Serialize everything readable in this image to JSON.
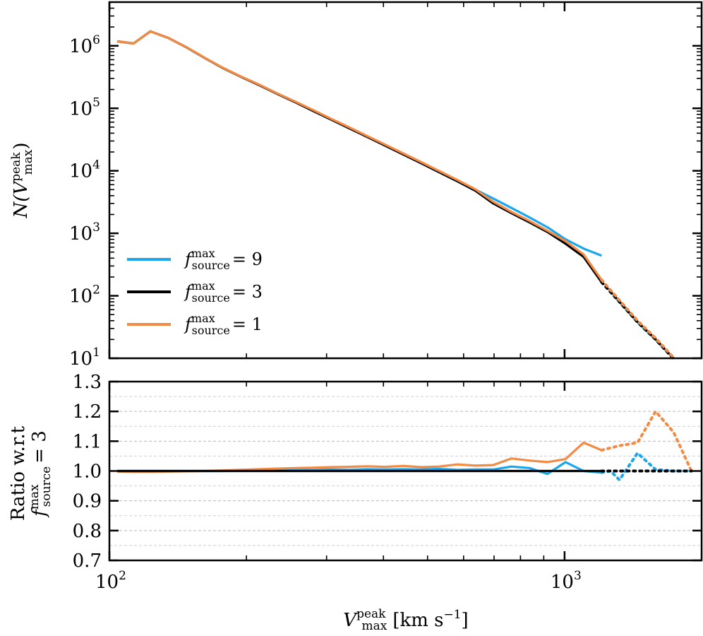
{
  "chart_data": [
    {
      "type": "line",
      "panel": "top",
      "xscale": "log",
      "yscale": "log",
      "xlim": [
        100,
        2000
      ],
      "ylim": [
        10,
        5000000
      ],
      "ylabel": {
        "base": "N(V",
        "sup": "peak",
        "sub": "max",
        "tail": ")"
      },
      "yticks": [
        {
          "value": 10,
          "base": "10",
          "exp": "1"
        },
        {
          "value": 100,
          "base": "10",
          "exp": "2"
        },
        {
          "value": 1000,
          "base": "10",
          "exp": "3"
        },
        {
          "value": 10000,
          "base": "10",
          "exp": "4"
        },
        {
          "value": 100000,
          "base": "10",
          "exp": "5"
        },
        {
          "value": 1000000,
          "base": "10",
          "exp": "6"
        }
      ],
      "legend_position": "lower-left",
      "series": [
        {
          "name": "f_source^max = 9",
          "legend": {
            "f": "f",
            "sup": "max",
            "sub": "source",
            "eq": "= 9"
          },
          "color": "#1aa7ec",
          "x": [
            104,
            113,
            123,
            135,
            148,
            162,
            177,
            194,
            213,
            233,
            256,
            280,
            307,
            336,
            368,
            403,
            442,
            484,
            530,
            581,
            637,
            697,
            764,
            837,
            917,
            1005,
            1101,
            1206
          ],
          "y": [
            1180000,
            1090000,
            1700000,
            1330000,
            940000,
            640000,
            450000,
            326000,
            240000,
            175000,
            128000,
            93000,
            67500,
            49000,
            35700,
            26000,
            18800,
            13600,
            9800,
            7050,
            5000,
            3600,
            2550,
            1800,
            1250,
            800,
            570,
            440
          ],
          "dotted": {
            "x": [
              1206,
              1320,
              1446,
              1585,
              1736
            ],
            "y": [
              180,
              80,
              38,
              20,
              10
            ]
          }
        },
        {
          "name": "f_source^max = 3",
          "legend": {
            "f": "f",
            "sup": "max",
            "sub": "source",
            "eq": "= 3"
          },
          "color": "#000000",
          "x": [
            104,
            113,
            123,
            135,
            148,
            162,
            177,
            194,
            213,
            233,
            256,
            280,
            307,
            336,
            368,
            403,
            442,
            484,
            530,
            581,
            637,
            697,
            764,
            837,
            917,
            1005,
            1101,
            1206
          ],
          "y": [
            1180000,
            1090000,
            1700000,
            1330000,
            940000,
            640000,
            445000,
            322000,
            236000,
            172000,
            125000,
            91000,
            66000,
            48000,
            35000,
            25400,
            18300,
            13200,
            9500,
            6800,
            4800,
            3000,
            2100,
            1500,
            1050,
            680,
            420,
            165
          ],
          "dotted": {
            "x": [
              1206,
              1320,
              1446,
              1585,
              1736
            ],
            "y": [
              165,
              80,
              38,
              20,
              9.8
            ]
          }
        },
        {
          "name": "f_source^max = 1",
          "legend": {
            "f": "f",
            "sup": "max",
            "sub": "source",
            "eq": "= 1"
          },
          "color": "#f28c45",
          "x": [
            104,
            113,
            123,
            135,
            148,
            162,
            177,
            194,
            213,
            233,
            256,
            280,
            307,
            336,
            368,
            403,
            442,
            484,
            530,
            581,
            637,
            697,
            764,
            837,
            917,
            1005,
            1101,
            1206
          ],
          "y": [
            1180000,
            1090000,
            1700000,
            1330000,
            945000,
            645000,
            450000,
            326000,
            240000,
            175000,
            128000,
            94000,
            68000,
            49800,
            36200,
            26400,
            19000,
            13800,
            9950,
            7150,
            5050,
            3200,
            2200,
            1580,
            1100,
            750,
            460,
            180
          ],
          "dotted": {
            "x": [
              1206,
              1320,
              1446,
              1585,
              1736
            ],
            "y": [
              180,
              85,
              40,
              21,
              10.2
            ]
          }
        }
      ]
    },
    {
      "type": "line",
      "panel": "bottom",
      "xscale": "log",
      "xlim": [
        100,
        2000
      ],
      "ylim": [
        0.7,
        1.3
      ],
      "grid": true,
      "xlabel": {
        "base": "V",
        "sup": "peak",
        "sub": "max",
        "units": "[km s",
        "units_exp": "−1",
        "units_close": "]"
      },
      "ylabel": {
        "line1": "Ratio w.r.t",
        "f": "f",
        "sup": "max",
        "sub": "source",
        "eq": "= 3"
      },
      "xticks": [
        {
          "value": 100,
          "base": "10",
          "exp": "2"
        },
        {
          "value": 1000,
          "base": "10",
          "exp": "3"
        }
      ],
      "yticks": [
        "0.7",
        "0.8",
        "0.9",
        "1.0",
        "1.1",
        "1.2",
        "1.3"
      ],
      "ytick_values": [
        0.7,
        0.8,
        0.9,
        1.0,
        1.1,
        1.2,
        1.3
      ],
      "series": [
        {
          "name": "f_source^max = 9",
          "color": "#1aa7ec",
          "x": [
            104,
            113,
            123,
            135,
            148,
            162,
            177,
            194,
            213,
            233,
            256,
            280,
            307,
            336,
            368,
            403,
            442,
            484,
            530,
            581,
            637,
            697,
            764,
            837,
            917,
            1005,
            1101,
            1206
          ],
          "y": [
            1.0,
            1.0,
            1.0,
            1.0,
            1.0,
            1.0,
            1.0,
            1.002,
            1.002,
            1.003,
            1.004,
            1.003,
            1.005,
            1.004,
            1.006,
            1.005,
            1.006,
            1.005,
            1.007,
            1.004,
            1.005,
            1.005,
            1.015,
            1.01,
            0.99,
            1.03,
            1.0,
            0.995
          ],
          "dotted": {
            "x": [
              1206,
              1262,
              1320,
              1446,
              1585,
              1736,
              1900
            ],
            "y": [
              0.995,
              1.0,
              0.97,
              1.06,
              1.005,
              1.0,
              1.0
            ]
          }
        },
        {
          "name": "f_source^max = 3",
          "color": "#000000",
          "x": [
            104,
            1206
          ],
          "y": [
            1.0,
            1.0
          ],
          "dotted": {
            "x": [
              1206,
              1900
            ],
            "y": [
              1.0,
              1.0
            ]
          }
        },
        {
          "name": "f_source^max = 1",
          "color": "#f28c45",
          "x": [
            104,
            113,
            123,
            135,
            148,
            162,
            177,
            194,
            213,
            233,
            256,
            280,
            307,
            336,
            368,
            403,
            442,
            484,
            530,
            581,
            637,
            697,
            764,
            837,
            917,
            1005,
            1101,
            1206
          ],
          "y": [
            0.998,
            0.997,
            0.997,
            0.998,
            0.999,
            1.0,
            1.002,
            1.004,
            1.006,
            1.008,
            1.01,
            1.011,
            1.013,
            1.014,
            1.016,
            1.014,
            1.017,
            1.013,
            1.015,
            1.022,
            1.018,
            1.02,
            1.042,
            1.035,
            1.03,
            1.04,
            1.095,
            1.07
          ],
          "dotted": {
            "x": [
              1206,
              1320,
              1446,
              1585,
              1736,
              1900
            ],
            "y": [
              1.07,
              1.085,
              1.095,
              1.2,
              1.13,
              1.0
            ]
          }
        }
      ]
    }
  ]
}
